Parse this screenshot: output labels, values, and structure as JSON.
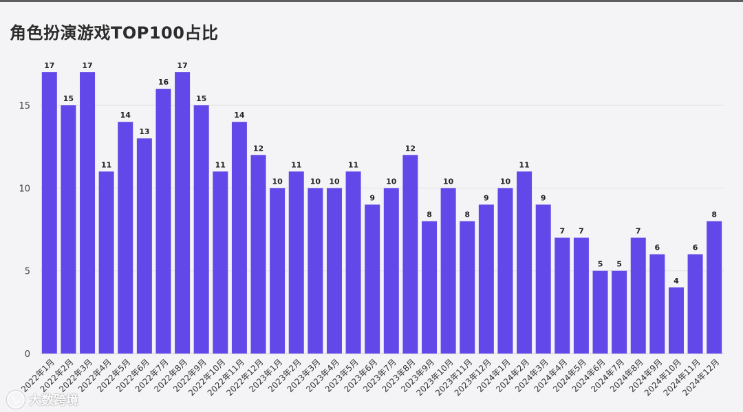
{
  "chart_data": {
    "type": "bar",
    "title": "角色扮演游戏TOP100占比",
    "xlabel": "",
    "ylabel": "",
    "ylim": [
      0,
      18
    ],
    "yticks": [
      0,
      5,
      10,
      15
    ],
    "grid": true,
    "bar_color": "#6248e8",
    "categories": [
      "2022年1月",
      "2022年2月",
      "2022年3月",
      "2022年4月",
      "2022年5月",
      "2022年6月",
      "2022年7月",
      "2022年8月",
      "2022年9月",
      "2022年10月",
      "2022年11月",
      "2022年12月",
      "2023年1月",
      "2023年2月",
      "2023年3月",
      "2023年4月",
      "2023年5月",
      "2023年6月",
      "2023年7月",
      "2023年8月",
      "2023年9月",
      "2023年10月",
      "2023年11月",
      "2023年12月",
      "2024年1月",
      "2024年2月",
      "2024年3月",
      "2024年4月",
      "2024年5月",
      "2024年6月",
      "2024年7月",
      "2024年8月",
      "2024年9月",
      "2024年10月",
      "2024年11月",
      "2024年12月"
    ],
    "values": [
      17,
      15,
      17,
      11,
      14,
      13,
      16,
      17,
      15,
      11,
      14,
      12,
      10,
      11,
      10,
      10,
      11,
      9,
      10,
      12,
      8,
      10,
      8,
      9,
      10,
      11,
      9,
      7,
      7,
      5,
      5,
      7,
      6,
      4,
      6,
      8
    ]
  },
  "watermark": {
    "text": "大数跨境",
    "icon": "watermark-logo-icon"
  }
}
